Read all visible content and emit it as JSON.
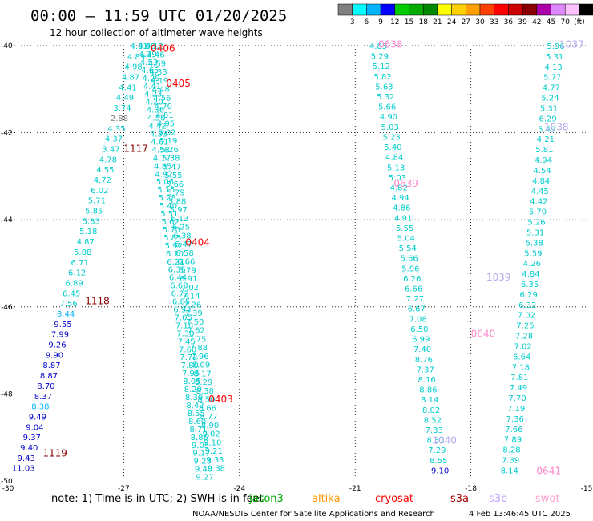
{
  "title": "00:00 – 11:59 UTC 01/20/2025",
  "subtitle": "12 hour collection of altimeter wave heights",
  "colorbar": {
    "labels": [
      "3",
      "6",
      "9",
      "12",
      "15",
      "18",
      "21",
      "24",
      "27",
      "30",
      "33",
      "36",
      "39",
      "42",
      "45",
      "70",
      "(ft)"
    ],
    "colors": [
      "#808080",
      "#00ffff",
      "#00b4ff",
      "#0000ff",
      "#00cc00",
      "#00aa00",
      "#008800",
      "#ffff00",
      "#ffd000",
      "#ffa000",
      "#ff4000",
      "#ff0000",
      "#cc0000",
      "#880000",
      "#aa00aa",
      "#dd88ff",
      "#ffc0ff",
      "#000000"
    ]
  },
  "note": "note: 1) Time is in UTC; 2) SWH is in feet",
  "legend": [
    {
      "name": "jason3",
      "color": "#00aa00"
    },
    {
      "name": "altika",
      "color": "#ff9900"
    },
    {
      "name": "cryosat",
      "color": "#ff0000"
    },
    {
      "name": "s3a",
      "color": "#aa0000"
    },
    {
      "name": "s3b",
      "color": "#c0a0ff"
    },
    {
      "name": "swot",
      "color": "#ffa0d0"
    }
  ],
  "footer_left": "NOAA/NESDIS Center for Satellite Applications and Research",
  "footer_right": "4 Feb 13:46:45 UTC 2025",
  "chart_data": {
    "type": "scatter",
    "xlim": [
      -30,
      -15
    ],
    "ylim": [
      -50,
      -40
    ],
    "x_ticks": [
      "-30",
      "-27",
      "-24",
      "-21",
      "-18",
      "-15"
    ],
    "y_ticks": [
      "-40",
      "-42",
      "-44",
      "-46",
      "-48",
      "-50"
    ],
    "grid": true,
    "pass_labels": [
      {
        "text": "0406",
        "x": -26.3,
        "y": -40.05,
        "color": "#ff0000"
      },
      {
        "text": "0405",
        "x": -25.9,
        "y": -40.85,
        "color": "#ff0000"
      },
      {
        "text": "0404",
        "x": -25.4,
        "y": -44.5,
        "color": "#ff0000"
      },
      {
        "text": "0403",
        "x": -24.8,
        "y": -48.1,
        "color": "#ff0000"
      },
      {
        "text": "1117",
        "x": -27.0,
        "y": -42.35,
        "color": "#880000"
      },
      {
        "text": "1118",
        "x": -28.0,
        "y": -45.85,
        "color": "#880000"
      },
      {
        "text": "1119",
        "x": -29.1,
        "y": -49.35,
        "color": "#880000"
      },
      {
        "text": "0638",
        "x": -20.4,
        "y": -39.95,
        "color": "#ff88cc"
      },
      {
        "text": "0639",
        "x": -20.0,
        "y": -43.15,
        "color": "#ff88cc"
      },
      {
        "text": "0640",
        "x": -18.0,
        "y": -46.6,
        "color": "#ff88cc"
      },
      {
        "text": "0641",
        "x": -16.3,
        "y": -49.75,
        "color": "#ff88cc"
      },
      {
        "text": "1037",
        "x": -15.7,
        "y": -39.95,
        "color": "#b8a8f0"
      },
      {
        "text": "1038",
        "x": -16.1,
        "y": -41.85,
        "color": "#b8a8f0"
      },
      {
        "text": "1039",
        "x": -17.6,
        "y": -45.3,
        "color": "#b8a8f0"
      },
      {
        "text": "1040",
        "x": -19.0,
        "y": -49.05,
        "color": "#b8a8f0"
      }
    ],
    "tracks": [
      {
        "color": "#00cccc",
        "x_start": -26.6,
        "y_start": -40.0,
        "x_end": -29.6,
        "y_end": -49.7,
        "values": [
          "4.01",
          "4.89",
          "4.98",
          "4.87",
          "4.41",
          "4.49",
          "3.74",
          "2.88",
          "4.35",
          "4.37",
          "3.47",
          "4.78",
          "4.55",
          "4.72",
          "6.02",
          "5.71",
          "5.85",
          "5.83",
          "5.18",
          "4.87",
          "5.88",
          "6.71",
          "6.12",
          "6.89",
          "6.45",
          "7.56",
          "8.44",
          "9.55",
          "7.99",
          "9.26",
          "9.90",
          "8.87",
          "8.87",
          "8.70",
          "8.37",
          "8.38",
          "9.49",
          "9.04",
          "9.37",
          "9.40",
          "9.43",
          "11.03"
        ],
        "value_colors": {
          "2.88": "#808080",
          "8.44": "#00b4ff",
          "9.55": "#0000cc",
          "7.99": "#0000cc",
          "9.26": "#0000cc",
          "9.90": "#0000cc",
          "8.87": "#0000cc",
          "8.70": "#0000cc",
          "8.37": "#0000cc",
          "8.38": "#00b4ff",
          "9.49": "#0000cc",
          "9.04": "#0000cc",
          "9.37": "#0000cc",
          "9.40": "#0000cc",
          "9.43": "#0000cc",
          "11.03": "#0000cc"
        }
      },
      {
        "color": "#00cccc",
        "x_start": -26.4,
        "y_start": -40.0,
        "x_end": -24.9,
        "y_end": -49.9,
        "values": [
          "4.08",
          "4.39",
          "4.53",
          "4.65",
          "4.29",
          "4.41",
          "4.23",
          "4.20",
          "4.36",
          "4.50",
          "4.42",
          "4.33",
          "4.61",
          "4.58",
          "4.77",
          "4.85",
          "4.92",
          "5.06",
          "5.15",
          "5.28",
          "5.40",
          "5.51",
          "5.62",
          "5.70",
          "5.85",
          "5.92",
          "6.10",
          "6.21",
          "6.35",
          "6.44",
          "6.60",
          "6.72",
          "6.85",
          "6.93",
          "7.05",
          "7.18",
          "7.30",
          "7.45",
          "7.60",
          "7.72",
          "7.80",
          "7.95",
          "8.05",
          "8.20",
          "8.30",
          "8.42",
          "8.55",
          "8.60",
          "8.71",
          "8.86",
          "9.05",
          "9.17",
          "9.23",
          "9.40",
          "9.27"
        ],
        "value_colors": {}
      },
      {
        "color": "#00cccc",
        "x_start": -26.2,
        "y_start": -40.0,
        "x_end": -24.6,
        "y_end": -49.7,
        "values": [
          "4.12",
          "4.46",
          "4.59",
          "4.33",
          "4.19",
          "4.48",
          "4.56",
          "4.70",
          "4.81",
          "4.95",
          "5.02",
          "5.19",
          "5.26",
          "5.38",
          "5.47",
          "5.55",
          "5.66",
          "5.79",
          "5.88",
          "5.97",
          "6.13",
          "6.25",
          "6.38",
          "6.47",
          "6.58",
          "6.66",
          "6.79",
          "6.91",
          "7.02",
          "7.14",
          "7.26",
          "7.39",
          "7.50",
          "7.62",
          "7.75",
          "7.88",
          "7.96",
          "8.09",
          "8.17",
          "8.29",
          "8.38",
          "8.50",
          "8.66",
          "8.77",
          "8.90",
          "9.02",
          "9.10",
          "9.21",
          "9.33",
          "9.38"
        ],
        "value_colors": {}
      },
      {
        "color": "#00cccc",
        "x_start": -20.4,
        "y_start": -40.0,
        "x_end": -18.8,
        "y_end": -49.75,
        "values": [
          "4.85",
          "5.29",
          "5.12",
          "5.82",
          "5.63",
          "5.32",
          "5.66",
          "4.90",
          "5.03",
          "5.23",
          "5.40",
          "4.84",
          "5.13",
          "5.03",
          "4.82",
          "4.94",
          "4.86",
          "4.91",
          "5.55",
          "5.04",
          "5.54",
          "5.66",
          "5.96",
          "6.26",
          "6.66",
          "7.27",
          "6.67",
          "7.08",
          "6.50",
          "6.99",
          "7.40",
          "8.76",
          "7.37",
          "8.16",
          "8.86",
          "8.14",
          "8.02",
          "8.52",
          "7.33",
          "8.31",
          "7.29",
          "8.55",
          "9.10"
        ],
        "value_colors": {
          "9.10": "#0000cc"
        }
      },
      {
        "color": "#00cccc",
        "x_start": -15.8,
        "y_start": -40.0,
        "x_end": -17.0,
        "y_end": -49.75,
        "values": [
          "5.96",
          "5.31",
          "4.13",
          "5.77",
          "4.77",
          "5.24",
          "5.31",
          "6.29",
          "5.49",
          "4.21",
          "5.81",
          "4.94",
          "4.54",
          "4.84",
          "4.45",
          "4.42",
          "5.70",
          "5.26",
          "5.31",
          "5.38",
          "5.59",
          "4.26",
          "4.84",
          "6.35",
          "6.29",
          "6.32",
          "7.02",
          "7.25",
          "7.28",
          "7.02",
          "6.64",
          "7.18",
          "7.81",
          "7.49",
          "7.70",
          "7.19",
          "7.36",
          "7.66",
          "7.89",
          "8.28",
          "7.39",
          "8.14"
        ],
        "value_colors": {}
      }
    ]
  }
}
